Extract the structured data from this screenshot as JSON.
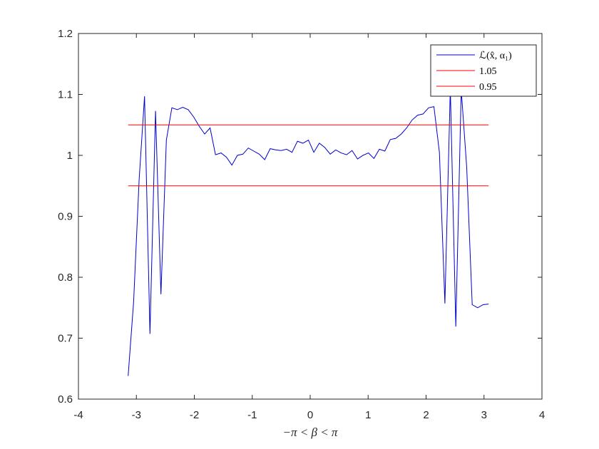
{
  "chart_data": {
    "type": "line",
    "title": "",
    "xlabel": "−π < β < π",
    "ylabel": "",
    "xlim": [
      -4,
      4
    ],
    "ylim": [
      0.6,
      1.2
    ],
    "xticks": [
      -4,
      -3,
      -2,
      -1,
      0,
      1,
      2,
      3,
      4
    ],
    "xtick_labels": [
      "-4",
      "-3",
      "-2",
      "-1",
      "0",
      "1",
      "2",
      "3",
      "4"
    ],
    "yticks": [
      0.6,
      0.7,
      0.8,
      0.9,
      1.0,
      1.1,
      1.2
    ],
    "ytick_labels": [
      "0.6",
      "0.7",
      "0.8",
      "0.9",
      "1",
      "1.1",
      "1.2"
    ],
    "grid": false,
    "legend_position": "top-right",
    "series": [
      {
        "name": "ℒ(x̂, α₁)",
        "color": "#0000cc",
        "x": [
          -3.142,
          -3.047,
          -2.953,
          -2.859,
          -2.765,
          -2.67,
          -2.576,
          -2.482,
          -2.388,
          -2.293,
          -2.199,
          -2.105,
          -2.011,
          -1.916,
          -1.822,
          -1.728,
          -1.634,
          -1.539,
          -1.445,
          -1.351,
          -1.257,
          -1.162,
          -1.068,
          -0.974,
          -0.88,
          -0.785,
          -0.691,
          -0.597,
          -0.503,
          -0.408,
          -0.314,
          -0.22,
          -0.126,
          -0.031,
          0.063,
          0.157,
          0.251,
          0.346,
          0.44,
          0.534,
          0.628,
          0.723,
          0.817,
          0.911,
          1.005,
          1.1,
          1.194,
          1.288,
          1.382,
          1.477,
          1.571,
          1.665,
          1.759,
          1.853,
          1.948,
          2.042,
          2.136,
          2.23,
          2.325,
          2.419,
          2.513,
          2.607,
          2.702,
          2.796,
          2.89,
          2.984,
          3.079
        ],
        "values": [
          0.638,
          0.76,
          0.96,
          1.097,
          0.707,
          1.073,
          0.772,
          1.025,
          1.078,
          1.075,
          1.079,
          1.075,
          1.063,
          1.048,
          1.035,
          1.045,
          1.001,
          1.004,
          0.997,
          0.984,
          1.0,
          1.002,
          1.012,
          1.007,
          1.002,
          0.993,
          1.011,
          1.009,
          1.008,
          1.01,
          1.005,
          1.023,
          1.02,
          1.025,
          1.005,
          1.02,
          1.013,
          1.002,
          1.009,
          1.004,
          1.001,
          1.008,
          0.994,
          1.0,
          1.004,
          0.995,
          1.01,
          1.007,
          1.026,
          1.028,
          1.035,
          1.045,
          1.058,
          1.066,
          1.068,
          1.078,
          1.08,
          1.005,
          0.757,
          1.11,
          0.719,
          1.108,
          0.98,
          0.755,
          0.75,
          0.755,
          0.756
        ]
      },
      {
        "name": "1.05",
        "color": "#ff0000",
        "x": [
          -3.142,
          3.079
        ],
        "values": [
          1.05,
          1.05
        ]
      },
      {
        "name": "0.95",
        "color": "#ff0000",
        "x": [
          -3.142,
          3.079
        ],
        "values": [
          0.95,
          0.95
        ]
      }
    ]
  }
}
